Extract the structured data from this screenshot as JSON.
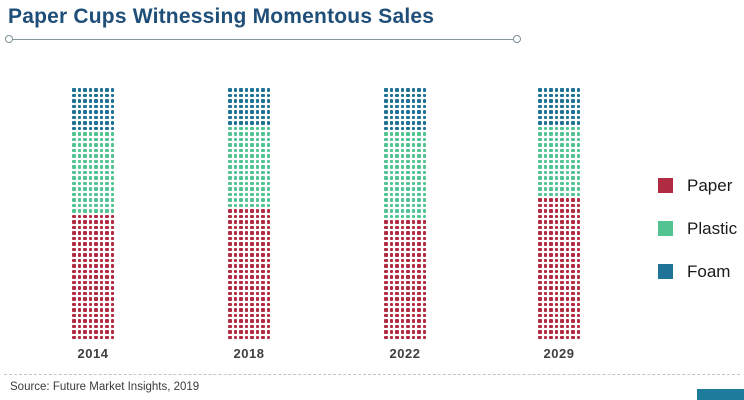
{
  "title": "Paper Cups Witnessing Momentous Sales",
  "source": "Source: Future Market Insights, 2019",
  "colors": {
    "title": "#1F4E79",
    "paper": "#B12B42",
    "plastic": "#52C492",
    "foam": "#1F7396",
    "brand_block": "#1E7B9A",
    "year_label": "#3F3F3F",
    "rule": "#86959B",
    "dashed_divider": "#C4C4C4"
  },
  "legend": [
    {
      "label": "Paper",
      "color_key": "paper"
    },
    {
      "label": "Plastic",
      "color_key": "plastic"
    },
    {
      "label": "Foam",
      "color_key": "foam"
    }
  ],
  "chart_data": {
    "type": "bar",
    "style": "dot-matrix stacked columns (pictograph, 8 dots per row)",
    "title": "Paper Cups Witnessing Momentous Sales",
    "categories": [
      "2014",
      "2018",
      "2022",
      "2029"
    ],
    "dots_per_row": 8,
    "rows_per_column": 46,
    "stack_order_bottom_to_top": [
      "Paper",
      "Plastic",
      "Foam"
    ],
    "legend_position": "right",
    "grid": false,
    "series": [
      {
        "name": "Paper",
        "color": "#B12B42",
        "rows": [
          23,
          24,
          22,
          26
        ],
        "approx_percent": [
          50,
          52,
          48,
          57
        ]
      },
      {
        "name": "Plastic",
        "color": "#52C492",
        "rows": [
          15,
          15,
          16,
          13
        ],
        "approx_percent": [
          33,
          33,
          35,
          28
        ]
      },
      {
        "name": "Foam",
        "color": "#1F7396",
        "rows": [
          8,
          7,
          8,
          7
        ],
        "approx_percent": [
          17,
          15,
          17,
          15
        ]
      }
    ]
  }
}
